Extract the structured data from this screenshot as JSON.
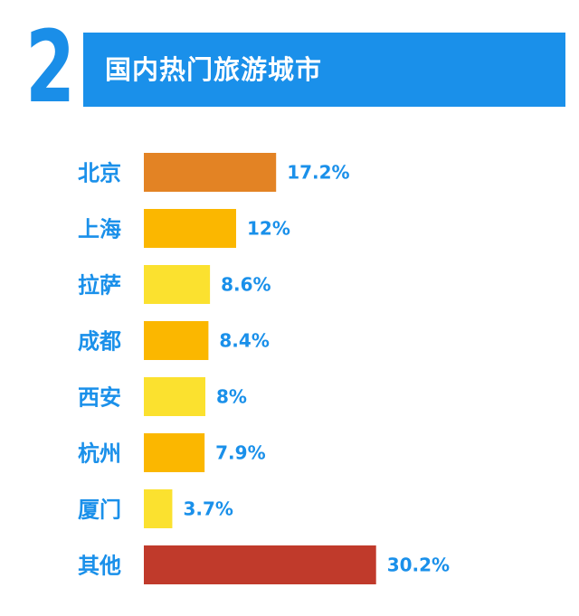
{
  "header": {
    "number": "2",
    "title": "国内热门旅游城市",
    "number_color": "#1a8ee8",
    "banner_color": "#1a90ea"
  },
  "chart_data": {
    "type": "bar",
    "orientation": "horizontal",
    "title": "国内热门旅游城市",
    "categories": [
      "北京",
      "上海",
      "拉萨",
      "成都",
      "西安",
      "杭州",
      "厦门",
      "其他"
    ],
    "values": [
      17.2,
      12,
      8.6,
      8.4,
      8,
      7.9,
      3.7,
      30.2
    ],
    "value_labels": [
      "17.2%",
      "12%",
      "8.6%",
      "8.4%",
      "8%",
      "7.9%",
      "3.7%",
      "30.2%"
    ],
    "unit": "%",
    "colors": [
      "#e38324",
      "#fbb700",
      "#fbe12f",
      "#fbb700",
      "#fbe12f",
      "#fbb700",
      "#fbe12f",
      "#c03a2b"
    ],
    "label_color": "#1a90ea",
    "grid": false,
    "legend": "none"
  }
}
